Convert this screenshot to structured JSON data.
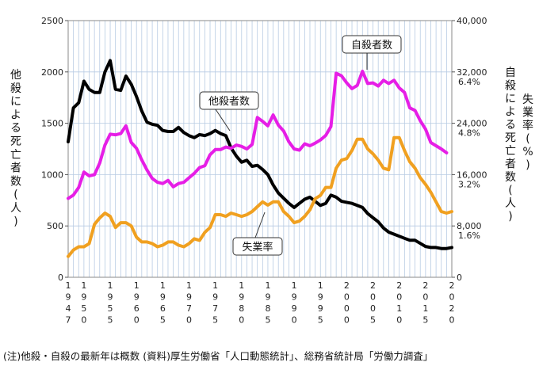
{
  "chart_data": {
    "type": "line",
    "left_axis_label": "他殺による死亡者数(人)",
    "right_axis_label_1": "失業率(%)",
    "right_axis_label_2": "自殺による死亡者数(人)",
    "left_ticks": [
      "2500",
      "2000",
      "1500",
      "1000",
      "500",
      "0"
    ],
    "right_ticks": [
      [
        "40,000",
        ""
      ],
      [
        "32,000",
        "6.4%"
      ],
      [
        "24,000",
        "4.8%"
      ],
      [
        "16,000",
        "3.2%"
      ],
      [
        "8,000",
        "1.6%"
      ],
      [
        "0",
        ""
      ]
    ],
    "x_tick_labels": [
      "1947",
      "1950",
      "1955",
      "1960",
      "1965",
      "1970",
      "1975",
      "1980",
      "1985",
      "1990",
      "1995",
      "2000",
      "2005",
      "2010",
      "2015",
      "2020"
    ],
    "x_tick_years": [
      1947,
      1950,
      1955,
      1960,
      1965,
      1970,
      1975,
      1980,
      1985,
      1990,
      1995,
      2000,
      2005,
      2010,
      2015,
      2020
    ],
    "xlim": [
      1947,
      2020
    ],
    "left_ylim": [
      0,
      2500
    ],
    "right_ylim_suicides": [
      0,
      40000
    ],
    "right_ylim_unemployment_percent": [
      0,
      8
    ],
    "series": [
      {
        "name": "他殺者数",
        "axis": "left",
        "color": "#000000",
        "points": [
          [
            1947,
            1320
          ],
          [
            1948,
            1650
          ],
          [
            1949,
            1700
          ],
          [
            1950,
            1910
          ],
          [
            1951,
            1830
          ],
          [
            1952,
            1800
          ],
          [
            1953,
            1800
          ],
          [
            1954,
            2000
          ],
          [
            1955,
            2110
          ],
          [
            1956,
            1830
          ],
          [
            1957,
            1820
          ],
          [
            1958,
            1960
          ],
          [
            1959,
            1880
          ],
          [
            1960,
            1760
          ],
          [
            1961,
            1620
          ],
          [
            1962,
            1510
          ],
          [
            1963,
            1490
          ],
          [
            1964,
            1480
          ],
          [
            1965,
            1430
          ],
          [
            1966,
            1420
          ],
          [
            1967,
            1420
          ],
          [
            1968,
            1460
          ],
          [
            1969,
            1410
          ],
          [
            1970,
            1380
          ],
          [
            1971,
            1360
          ],
          [
            1972,
            1390
          ],
          [
            1973,
            1380
          ],
          [
            1974,
            1400
          ],
          [
            1975,
            1430
          ],
          [
            1976,
            1400
          ],
          [
            1977,
            1380
          ],
          [
            1978,
            1260
          ],
          [
            1979,
            1180
          ],
          [
            1980,
            1120
          ],
          [
            1981,
            1140
          ],
          [
            1982,
            1080
          ],
          [
            1983,
            1090
          ],
          [
            1984,
            1050
          ],
          [
            1985,
            1000
          ],
          [
            1986,
            900
          ],
          [
            1987,
            820
          ],
          [
            1988,
            770
          ],
          [
            1989,
            720
          ],
          [
            1990,
            680
          ],
          [
            1991,
            720
          ],
          [
            1992,
            760
          ],
          [
            1993,
            780
          ],
          [
            1994,
            740
          ],
          [
            1995,
            700
          ],
          [
            1996,
            720
          ],
          [
            1997,
            800
          ],
          [
            1998,
            780
          ],
          [
            1999,
            740
          ],
          [
            2000,
            730
          ],
          [
            2001,
            720
          ],
          [
            2002,
            700
          ],
          [
            2003,
            680
          ],
          [
            2004,
            620
          ],
          [
            2005,
            580
          ],
          [
            2006,
            540
          ],
          [
            2007,
            480
          ],
          [
            2008,
            440
          ],
          [
            2009,
            420
          ],
          [
            2010,
            400
          ],
          [
            2011,
            380
          ],
          [
            2012,
            360
          ],
          [
            2013,
            360
          ],
          [
            2014,
            330
          ],
          [
            2015,
            300
          ],
          [
            2016,
            290
          ],
          [
            2017,
            290
          ],
          [
            2018,
            280
          ],
          [
            2019,
            280
          ],
          [
            2020,
            290
          ]
        ]
      },
      {
        "name": "自殺者数",
        "axis": "right",
        "color": "#e61ee6",
        "points": [
          [
            1947,
            12300
          ],
          [
            1948,
            12800
          ],
          [
            1949,
            14000
          ],
          [
            1950,
            16400
          ],
          [
            1951,
            15800
          ],
          [
            1952,
            16000
          ],
          [
            1953,
            17800
          ],
          [
            1954,
            20600
          ],
          [
            1955,
            22300
          ],
          [
            1956,
            22200
          ],
          [
            1957,
            22400
          ],
          [
            1958,
            23600
          ],
          [
            1959,
            21000
          ],
          [
            1960,
            20100
          ],
          [
            1961,
            18300
          ],
          [
            1962,
            16700
          ],
          [
            1963,
            15400
          ],
          [
            1964,
            14800
          ],
          [
            1965,
            14600
          ],
          [
            1966,
            15100
          ],
          [
            1967,
            14100
          ],
          [
            1968,
            14600
          ],
          [
            1969,
            14800
          ],
          [
            1970,
            15500
          ],
          [
            1971,
            16200
          ],
          [
            1972,
            17100
          ],
          [
            1973,
            17400
          ],
          [
            1974,
            19100
          ],
          [
            1975,
            19900
          ],
          [
            1976,
            19900
          ],
          [
            1977,
            20300
          ],
          [
            1978,
            20100
          ],
          [
            1979,
            20600
          ],
          [
            1980,
            20400
          ],
          [
            1981,
            20000
          ],
          [
            1982,
            20700
          ],
          [
            1983,
            24900
          ],
          [
            1984,
            24300
          ],
          [
            1985,
            23600
          ],
          [
            1986,
            25300
          ],
          [
            1987,
            23700
          ],
          [
            1988,
            22800
          ],
          [
            1989,
            21100
          ],
          [
            1990,
            20000
          ],
          [
            1991,
            19800
          ],
          [
            1992,
            20800
          ],
          [
            1993,
            20500
          ],
          [
            1994,
            20900
          ],
          [
            1995,
            21400
          ],
          [
            1996,
            22100
          ],
          [
            1997,
            23500
          ],
          [
            1998,
            31800
          ],
          [
            1999,
            31400
          ],
          [
            2000,
            30300
          ],
          [
            2001,
            29400
          ],
          [
            2002,
            29900
          ],
          [
            2003,
            32100
          ],
          [
            2004,
            30200
          ],
          [
            2005,
            30300
          ],
          [
            2006,
            29800
          ],
          [
            2007,
            30700
          ],
          [
            2008,
            30200
          ],
          [
            2009,
            30700
          ],
          [
            2010,
            29500
          ],
          [
            2011,
            28800
          ],
          [
            2012,
            26400
          ],
          [
            2013,
            26000
          ],
          [
            2014,
            24400
          ],
          [
            2015,
            23100
          ],
          [
            2016,
            21000
          ],
          [
            2017,
            20500
          ],
          [
            2018,
            20000
          ],
          [
            2019,
            19400
          ]
        ]
      },
      {
        "name": "失業率",
        "axis": "right",
        "unit": "%",
        "color": "#f0a020",
        "points": [
          [
            1947,
            0.65
          ],
          [
            1948,
            0.85
          ],
          [
            1949,
            0.95
          ],
          [
            1950,
            0.95
          ],
          [
            1951,
            1.05
          ],
          [
            1952,
            1.65
          ],
          [
            1953,
            1.85
          ],
          [
            1954,
            2.0
          ],
          [
            1955,
            1.9
          ],
          [
            1956,
            1.55
          ],
          [
            1957,
            1.7
          ],
          [
            1958,
            1.7
          ],
          [
            1959,
            1.6
          ],
          [
            1960,
            1.25
          ],
          [
            1961,
            1.1
          ],
          [
            1962,
            1.1
          ],
          [
            1963,
            1.05
          ],
          [
            1964,
            0.95
          ],
          [
            1965,
            1.0
          ],
          [
            1966,
            1.1
          ],
          [
            1967,
            1.1
          ],
          [
            1968,
            1.0
          ],
          [
            1969,
            0.95
          ],
          [
            1970,
            1.05
          ],
          [
            1971,
            1.2
          ],
          [
            1972,
            1.15
          ],
          [
            1973,
            1.4
          ],
          [
            1974,
            1.55
          ],
          [
            1975,
            1.95
          ],
          [
            1976,
            1.95
          ],
          [
            1977,
            1.9
          ],
          [
            1978,
            2.0
          ],
          [
            1979,
            1.95
          ],
          [
            1980,
            1.9
          ],
          [
            1981,
            1.95
          ],
          [
            1982,
            2.05
          ],
          [
            1983,
            2.2
          ],
          [
            1984,
            2.35
          ],
          [
            1985,
            2.25
          ],
          [
            1986,
            2.35
          ],
          [
            1987,
            2.35
          ],
          [
            1988,
            2.05
          ],
          [
            1989,
            1.9
          ],
          [
            1990,
            1.7
          ],
          [
            1991,
            1.75
          ],
          [
            1992,
            1.9
          ],
          [
            1993,
            2.1
          ],
          [
            1994,
            2.45
          ],
          [
            1995,
            2.55
          ],
          [
            1996,
            2.8
          ],
          [
            1997,
            2.8
          ],
          [
            1998,
            3.4
          ],
          [
            1999,
            3.65
          ],
          [
            2000,
            3.7
          ],
          [
            2001,
            3.95
          ],
          [
            2002,
            4.3
          ],
          [
            2003,
            4.3
          ],
          [
            2004,
            4.0
          ],
          [
            2005,
            3.85
          ],
          [
            2006,
            3.65
          ],
          [
            2007,
            3.4
          ],
          [
            2008,
            3.35
          ],
          [
            2009,
            4.35
          ],
          [
            2010,
            4.35
          ],
          [
            2011,
            3.95
          ],
          [
            2012,
            3.6
          ],
          [
            2013,
            3.4
          ],
          [
            2014,
            3.1
          ],
          [
            2015,
            2.9
          ],
          [
            2016,
            2.65
          ],
          [
            2017,
            2.35
          ],
          [
            2018,
            2.05
          ],
          [
            2019,
            2.0
          ],
          [
            2020,
            2.05
          ]
        ]
      }
    ],
    "callouts": [
      {
        "label": "自殺者数",
        "series": "自殺者数"
      },
      {
        "label": "他殺者数",
        "series": "他殺者数"
      },
      {
        "label": "失業率",
        "series": "失業率"
      }
    ],
    "grid": true
  },
  "footnote": "(注)他殺・自殺の最新年は概数 (資料)厚生労働省「人口動態統計」、総務省統計局「労働力調査」"
}
